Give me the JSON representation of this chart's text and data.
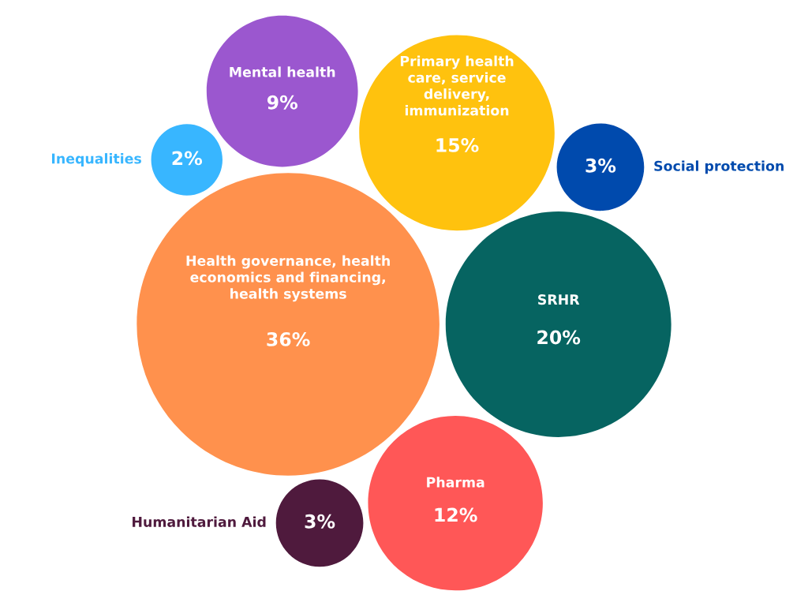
{
  "chart_data": {
    "type": "other",
    "categories": [
      "Health governance, health\neconomics and financing,\nhealth systems",
      "SRHR",
      "Primary health\ncare, service\ndelivery,\nimmunization",
      "Pharma",
      "Mental health",
      "Social protection",
      "Humanitarian Aid",
      "Inequalities"
    ],
    "values": [
      36,
      20,
      15,
      12,
      9,
      3,
      3,
      2
    ],
    "value_labels": [
      "36%",
      "20%",
      "15%",
      "12%",
      "9%",
      "3%",
      "3%",
      "2%"
    ],
    "colors": [
      "#ff914d",
      "#066461",
      "#ffc20e",
      "#ff5757",
      "#9b57cf",
      "#004aad",
      "#4f1a3d",
      "#38b6ff"
    ]
  }
}
